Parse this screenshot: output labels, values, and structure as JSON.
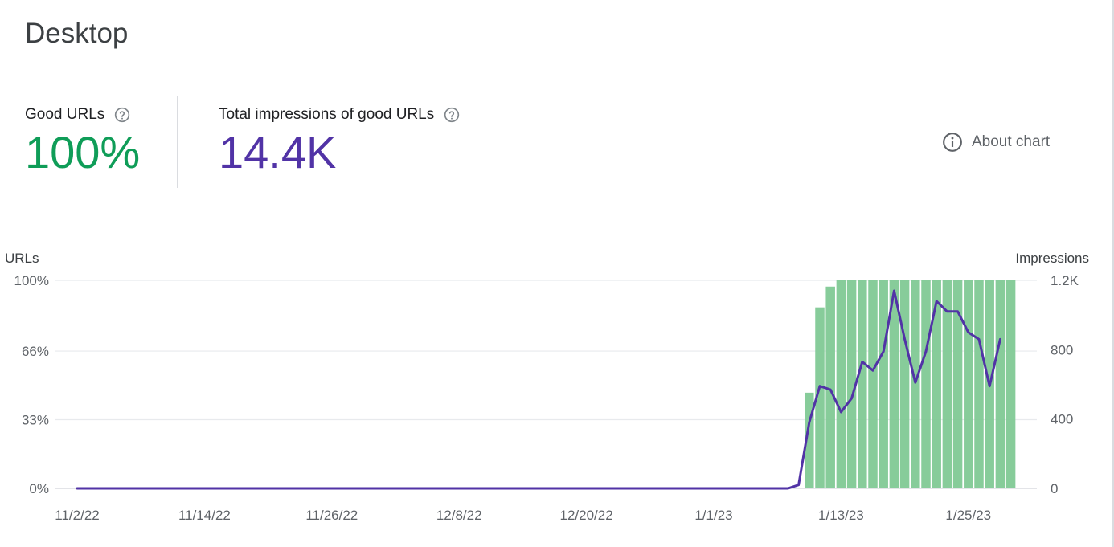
{
  "page": {
    "title": "Desktop"
  },
  "metrics": {
    "good_urls": {
      "label": "Good URLs",
      "value": "100%"
    },
    "impressions": {
      "label": "Total impressions of good URLs",
      "value": "14.4K"
    },
    "help_icon": "help-circle-icon"
  },
  "about_chart": {
    "label": "About chart",
    "icon": "info-icon"
  },
  "colors": {
    "good": "#0f9d58",
    "impressions": "#5133a6",
    "bar_fill": "#81c995",
    "grid": "#e8eaed",
    "axis_text": "#5f6368"
  },
  "chart_data": {
    "type": "bar",
    "left_axis": {
      "label": "URLs",
      "ticks": [
        "0%",
        "33%",
        "66%",
        "100%"
      ],
      "tick_values": [
        0,
        33,
        66,
        100
      ],
      "range": [
        0,
        100
      ]
    },
    "right_axis": {
      "label": "Impressions",
      "ticks": [
        "0",
        "400",
        "800",
        "1.2K"
      ],
      "tick_values": [
        0,
        400,
        800,
        1200
      ],
      "range": [
        0,
        1200
      ]
    },
    "x_axis": {
      "tick_labels": [
        "11/2/22",
        "11/14/22",
        "11/26/22",
        "12/8/22",
        "12/20/22",
        "1/1/23",
        "1/13/23",
        "1/25/23"
      ],
      "tick_dates": [
        "2022-11-02",
        "2022-11-14",
        "2022-11-26",
        "2022-12-08",
        "2022-12-20",
        "2023-01-01",
        "2023-01-13",
        "2023-01-25"
      ]
    },
    "series": [
      {
        "type": "bar",
        "axis": "left",
        "points": [
          {
            "date": "2023-01-10",
            "value": 46
          },
          {
            "date": "2023-01-11",
            "value": 87
          },
          {
            "date": "2023-01-12",
            "value": 97
          },
          {
            "date": "2023-01-13",
            "value": 100
          },
          {
            "date": "2023-01-14",
            "value": 100
          },
          {
            "date": "2023-01-15",
            "value": 100
          },
          {
            "date": "2023-01-16",
            "value": 100
          },
          {
            "date": "2023-01-17",
            "value": 100
          },
          {
            "date": "2023-01-18",
            "value": 100
          },
          {
            "date": "2023-01-19",
            "value": 100
          },
          {
            "date": "2023-01-20",
            "value": 100
          },
          {
            "date": "2023-01-21",
            "value": 100
          },
          {
            "date": "2023-01-22",
            "value": 100
          },
          {
            "date": "2023-01-23",
            "value": 100
          },
          {
            "date": "2023-01-24",
            "value": 100
          },
          {
            "date": "2023-01-25",
            "value": 100
          },
          {
            "date": "2023-01-26",
            "value": 100
          },
          {
            "date": "2023-01-27",
            "value": 100
          },
          {
            "date": "2023-01-28",
            "value": 100
          },
          {
            "date": "2023-01-29",
            "value": 100
          }
        ]
      },
      {
        "type": "line",
        "axis": "right",
        "points": [
          {
            "date": "2022-11-02",
            "value": 0
          },
          {
            "date": "2023-01-08",
            "value": 0
          },
          {
            "date": "2023-01-09",
            "value": 20
          },
          {
            "date": "2023-01-10",
            "value": 380
          },
          {
            "date": "2023-01-11",
            "value": 590
          },
          {
            "date": "2023-01-12",
            "value": 570
          },
          {
            "date": "2023-01-13",
            "value": 440
          },
          {
            "date": "2023-01-14",
            "value": 520
          },
          {
            "date": "2023-01-15",
            "value": 730
          },
          {
            "date": "2023-01-16",
            "value": 680
          },
          {
            "date": "2023-01-17",
            "value": 790
          },
          {
            "date": "2023-01-18",
            "value": 1140
          },
          {
            "date": "2023-01-19",
            "value": 860
          },
          {
            "date": "2023-01-20",
            "value": 610
          },
          {
            "date": "2023-01-21",
            "value": 790
          },
          {
            "date": "2023-01-22",
            "value": 1080
          },
          {
            "date": "2023-01-23",
            "value": 1020
          },
          {
            "date": "2023-01-24",
            "value": 1020
          },
          {
            "date": "2023-01-25",
            "value": 900
          },
          {
            "date": "2023-01-26",
            "value": 860
          },
          {
            "date": "2023-01-27",
            "value": 590
          },
          {
            "date": "2023-01-28",
            "value": 860
          }
        ]
      }
    ],
    "grid": true,
    "legend": "none"
  }
}
